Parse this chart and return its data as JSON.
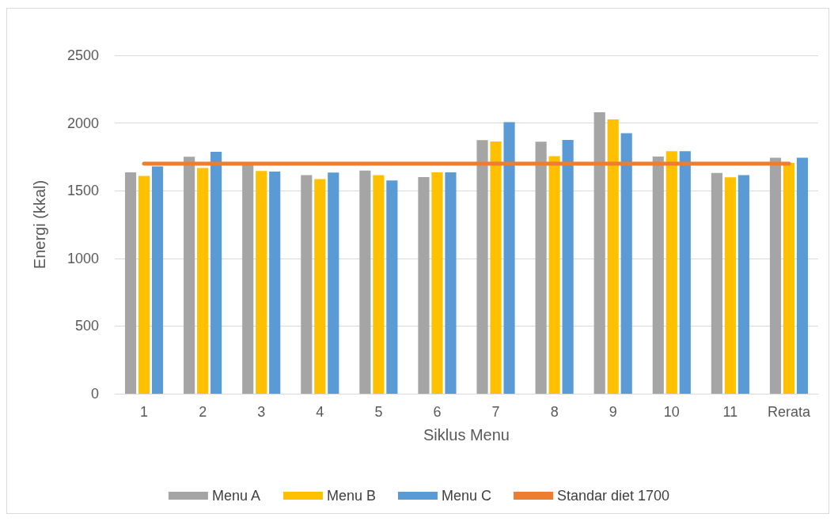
{
  "chart_data": {
    "type": "bar",
    "xlabel": "Siklus Menu",
    "ylabel": "Energi (kkal)",
    "categories": [
      "1",
      "2",
      "3",
      "4",
      "5",
      "6",
      "7",
      "8",
      "9",
      "10",
      "11",
      "Rerata"
    ],
    "series": [
      {
        "name": "Menu A",
        "color": "#a5a5a5",
        "values": [
          1636,
          1751,
          1690,
          1615,
          1648,
          1601,
          1873,
          1862,
          2080,
          1753,
          1631,
          1743
        ]
      },
      {
        "name": "Menu B",
        "color": "#ffc000",
        "values": [
          1609,
          1667,
          1646,
          1586,
          1615,
          1636,
          1864,
          1755,
          2027,
          1792,
          1599,
          1706
        ]
      },
      {
        "name": "Menu C",
        "color": "#5b9bd5",
        "values": [
          1679,
          1788,
          1642,
          1634,
          1576,
          1636,
          2007,
          1875,
          1924,
          1792,
          1615,
          1743
        ]
      },
      {
        "name": "Standar diet 1700",
        "type": "line",
        "color": "#ed7d31",
        "values": [
          1700,
          1700,
          1700,
          1700,
          1700,
          1700,
          1700,
          1700,
          1700,
          1700,
          1700,
          1700
        ]
      }
    ],
    "ylim": [
      0,
      2500
    ],
    "yticks": [
      0,
      500,
      1000,
      1500,
      2000,
      2500
    ],
    "grid": "y",
    "legend": "bottom",
    "marker": "none"
  }
}
